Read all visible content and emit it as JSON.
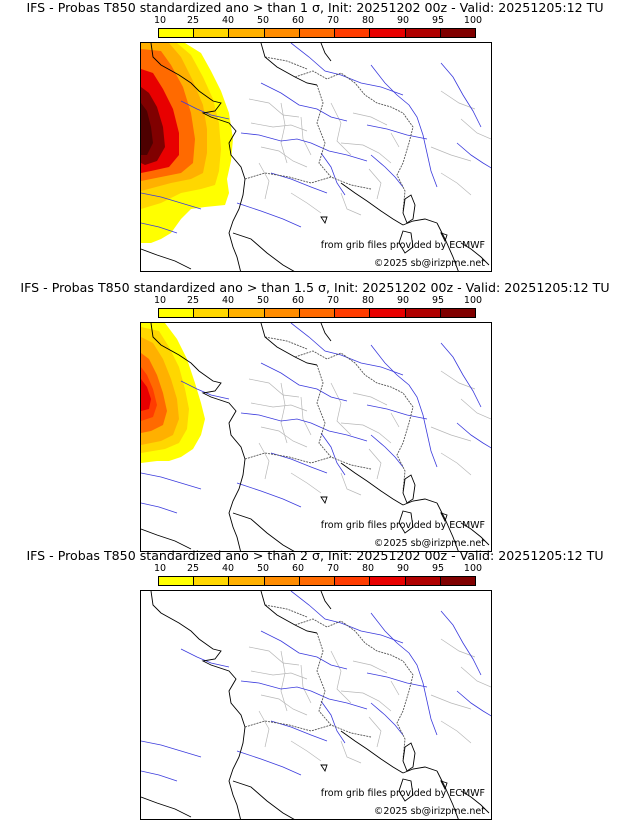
{
  "colorbar": {
    "labels": [
      "10",
      "25",
      "40",
      "50",
      "60",
      "70",
      "80",
      "90",
      "95",
      "100"
    ],
    "colors": [
      "#ffff00",
      "#ffd700",
      "#ffb000",
      "#ff8c00",
      "#ff6a00",
      "#ff3c00",
      "#e80000",
      "#b00000",
      "#800000",
      "#4d0000"
    ]
  },
  "credits": {
    "source": "from grib files provided by ECMWF",
    "copyright": "©2025 sb@irizpme.net"
  },
  "panels": [
    {
      "title": "IFS - Probas T850  standardized ano > than 1 σ, Init: 20251202 00z - Valid: 20251205:12 TU",
      "max_probability": 100
    },
    {
      "title": "IFS - Probas T850  standardized ano > than 1.5 σ, Init: 20251202 00z - Valid: 20251205:12 TU",
      "max_probability": 80
    },
    {
      "title": "IFS - Probas T850  standardized ano > than 2 σ, Init: 20251202 00z - Valid: 20251205:12 TU",
      "max_probability": 0
    }
  ]
}
